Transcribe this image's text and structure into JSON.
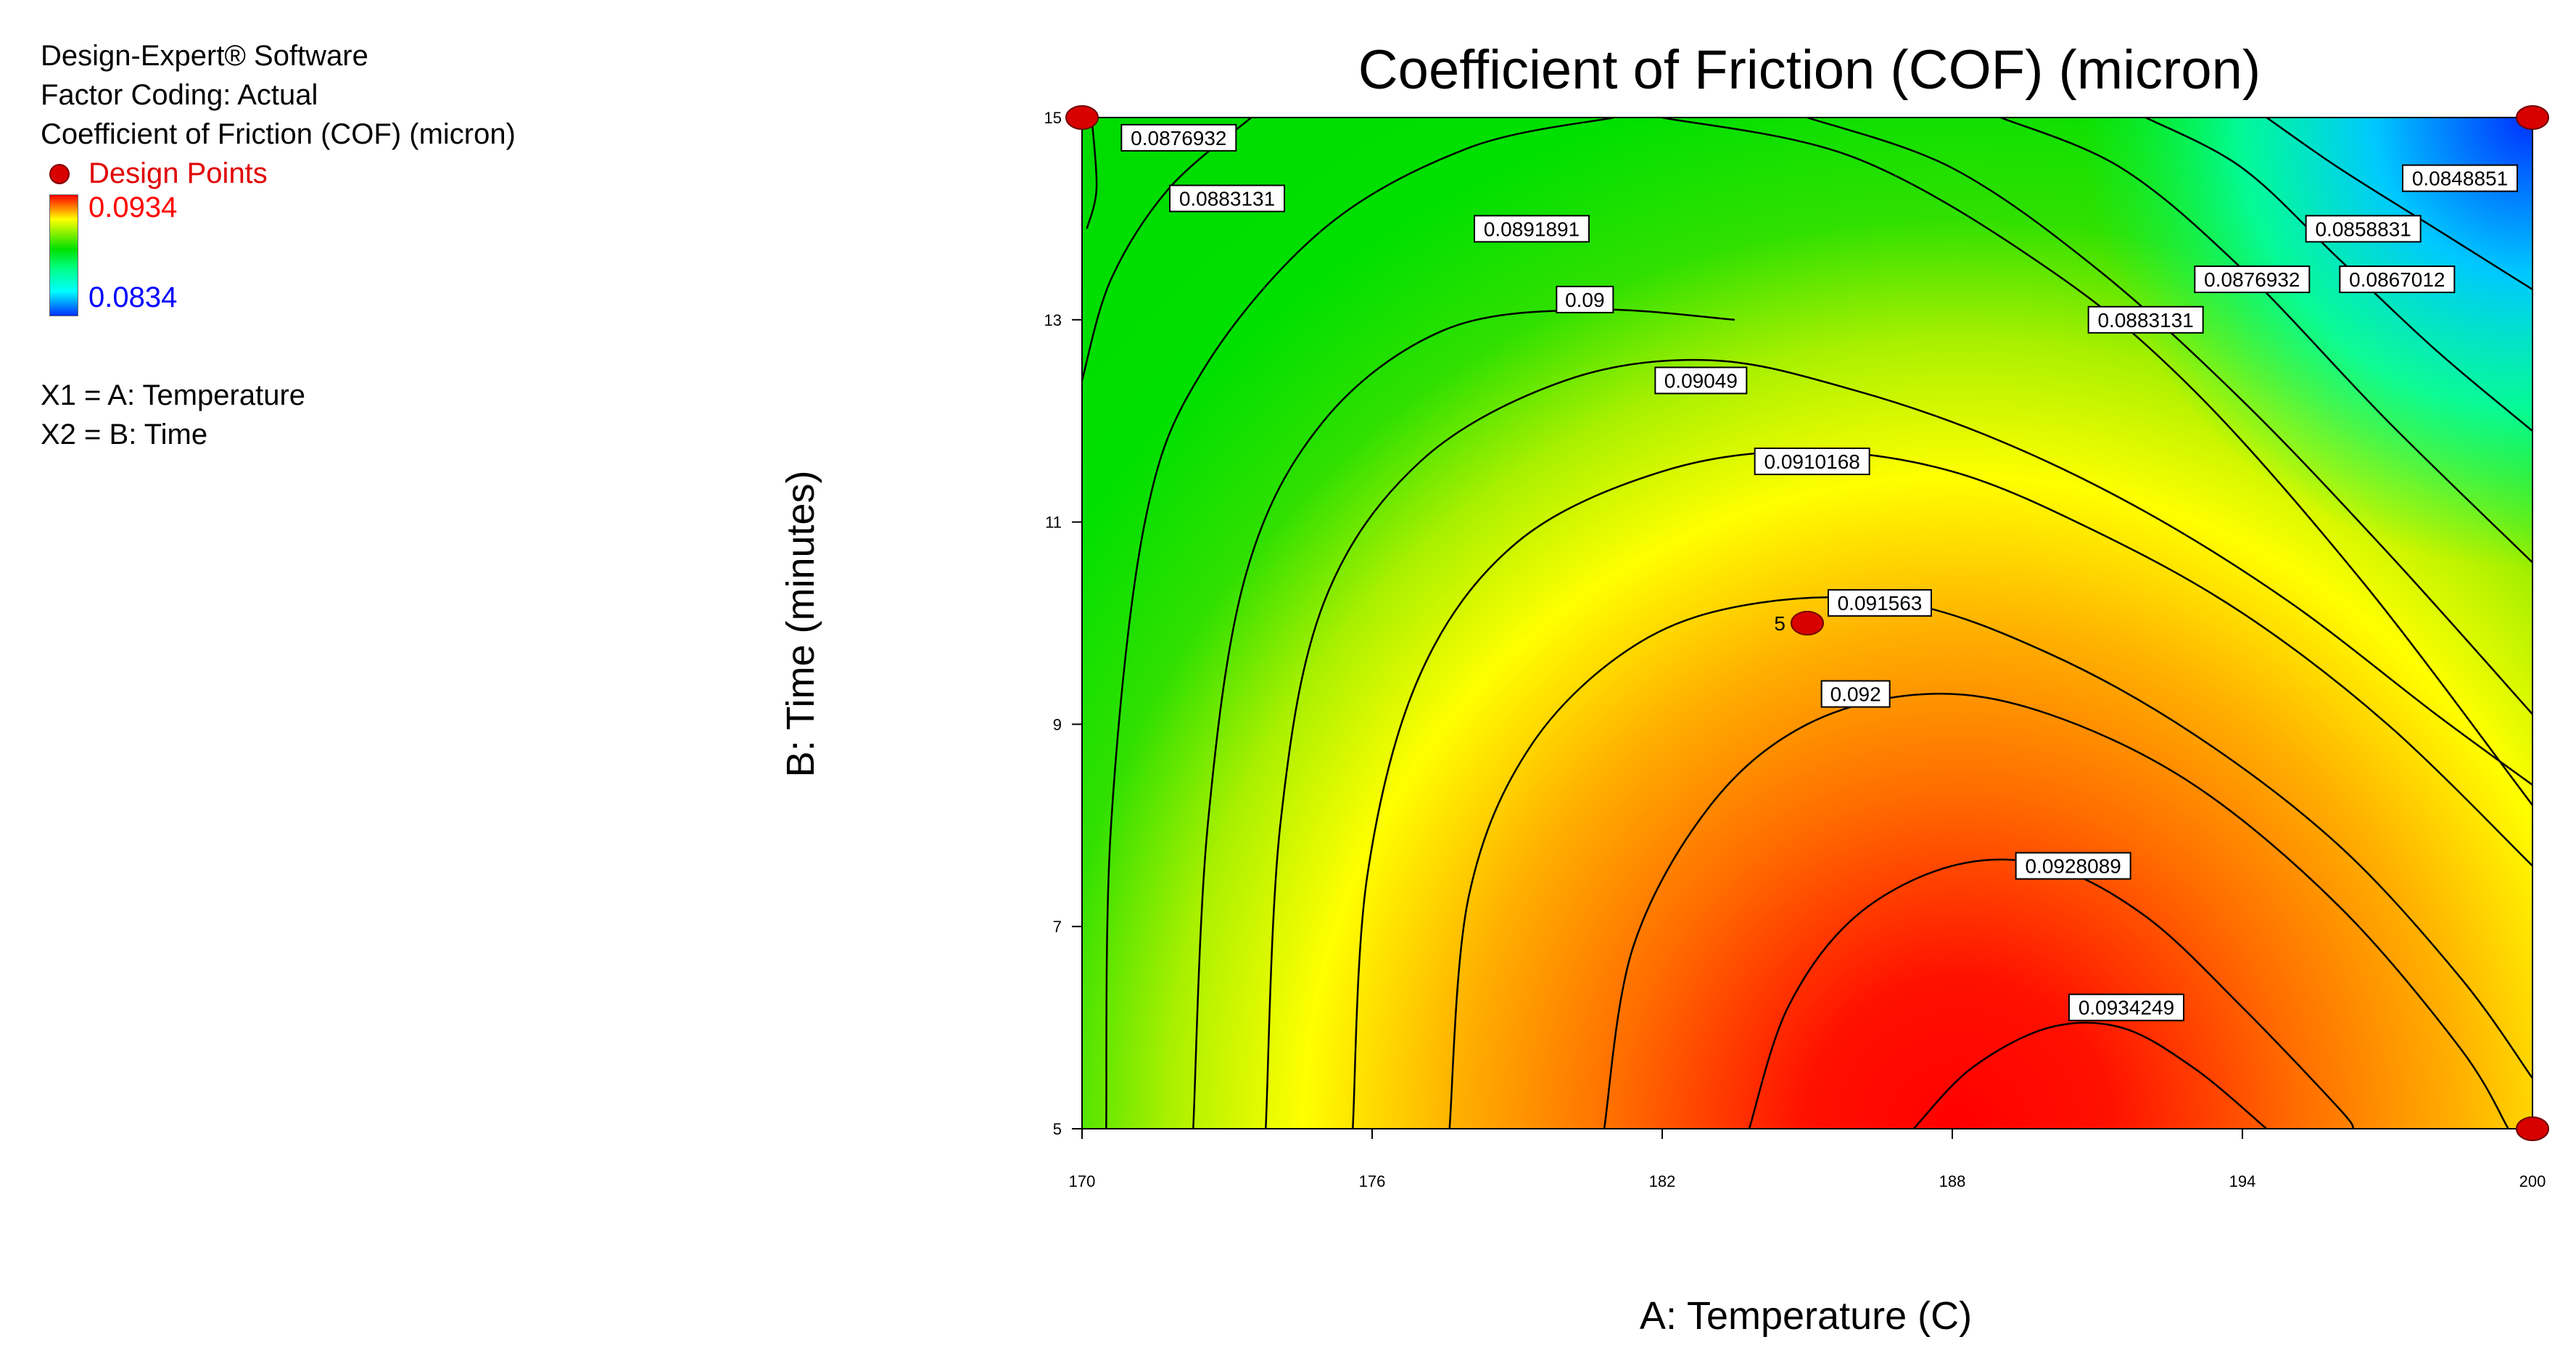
{
  "legend": {
    "line1": "Design-Expert® Software",
    "line2": "Factor Coding: Actual",
    "line3": "Coefficient of Friction (COF) (micron)",
    "design_points_label": "Design Points",
    "color_high": "0.0934",
    "color_low": "0.0834",
    "x1": "X1 = A: Temperature",
    "x2": "X2 = B: Time"
  },
  "chart_data": {
    "type": "heatmap",
    "subtype": "contour",
    "title": "Coefficient of Friction (COF) (micron)",
    "xlabel": "A: Temperature (C)",
    "ylabel": "B: Time (minutes)",
    "xlim": [
      170,
      200
    ],
    "ylim": [
      5,
      15
    ],
    "xticks": [
      "170",
      "176",
      "182",
      "188",
      "194",
      "200"
    ],
    "yticks": [
      "5",
      "7",
      "9",
      "11",
      "13",
      "15"
    ],
    "color_range": [
      0.0834,
      0.0934
    ],
    "colors": {
      "high": "#ff0000",
      "mid": "#ffff00",
      "low_mid": "#00e000",
      "low": "#0030ff",
      "point": "#d90000"
    },
    "contours": [
      {
        "label": "0.0848851",
        "lx": 198.5,
        "ly": 14.4,
        "points": [
          [
            194.5,
            15
          ],
          [
            196,
            14.5
          ],
          [
            198,
            13.9
          ],
          [
            200,
            13.3
          ]
        ]
      },
      {
        "label": "0.0858831",
        "lx": 196.5,
        "ly": 13.9,
        "points": [
          [
            192,
            15
          ],
          [
            194,
            14.5
          ],
          [
            196,
            13.6
          ],
          [
            198,
            12.7
          ],
          [
            200,
            11.9
          ]
        ]
      },
      {
        "label": "0.0867012",
        "lx": 197.2,
        "ly": 13.4,
        "points": [
          [
            189,
            15
          ],
          [
            191.5,
            14.5
          ],
          [
            194,
            13.5
          ],
          [
            197,
            12.0
          ],
          [
            200,
            10.6
          ]
        ]
      },
      {
        "label": "0.0876932",
        "lx": 194.2,
        "ly": 13.4,
        "points": [
          [
            185,
            15
          ],
          [
            188,
            14.5
          ],
          [
            191,
            13.5
          ],
          [
            194,
            12.2
          ],
          [
            197,
            10.7
          ],
          [
            200,
            9.1
          ]
        ]
      },
      {
        "label": "0.0883131",
        "lx": 192.0,
        "ly": 13.0,
        "points": [
          [
            182,
            15
          ],
          [
            186,
            14.6
          ],
          [
            190,
            13.5
          ],
          [
            193,
            12.3
          ],
          [
            196.5,
            10.4
          ],
          [
            200,
            8.2
          ]
        ]
      },
      {
        "label": "0.0876932",
        "lx": 172.0,
        "ly": 14.8,
        "points": [
          [
            170.2,
            15
          ],
          [
            170.3,
            14.3
          ],
          [
            170.1,
            13.9
          ]
        ]
      },
      {
        "label": "0.0883131",
        "lx": 173.0,
        "ly": 14.2,
        "points": [
          [
            170,
            12.4
          ],
          [
            170.6,
            13.4
          ],
          [
            171.8,
            14.3
          ],
          [
            173.5,
            15
          ]
        ]
      },
      {
        "label": "0.0891891",
        "lx": 179.3,
        "ly": 13.9,
        "points": [
          [
            170.5,
            5
          ],
          [
            170.6,
            8
          ],
          [
            171.3,
            11
          ],
          [
            172.5,
            12.5
          ],
          [
            175,
            13.9
          ],
          [
            178,
            14.7
          ],
          [
            181,
            15
          ]
        ]
      },
      {
        "label": "0.09",
        "lx": 180.4,
        "ly": 13.2,
        "points": [
          [
            172.3,
            5
          ],
          [
            172.6,
            8
          ],
          [
            173.4,
            10.5
          ],
          [
            175,
            12
          ],
          [
            177.5,
            12.9
          ],
          [
            180.5,
            13.1
          ],
          [
            183.5,
            13.0
          ]
        ]
      },
      {
        "label": "0.09049",
        "lx": 182.8,
        "ly": 12.4,
        "points": [
          [
            173.8,
            5
          ],
          [
            174.1,
            8
          ],
          [
            175,
            10.2
          ],
          [
            177,
            11.6
          ],
          [
            180,
            12.4
          ],
          [
            183,
            12.6
          ],
          [
            186,
            12.3
          ],
          [
            189,
            11.8
          ],
          [
            192,
            11.1
          ],
          [
            195,
            10.2
          ],
          [
            198,
            9.1
          ],
          [
            200,
            8.4
          ]
        ]
      },
      {
        "label": "0.0910168",
        "lx": 185.1,
        "ly": 11.6,
        "points": [
          [
            175.6,
            5
          ],
          [
            175.9,
            7.5
          ],
          [
            177,
            9.5
          ],
          [
            179,
            10.8
          ],
          [
            182,
            11.5
          ],
          [
            185,
            11.7
          ],
          [
            188,
            11.5
          ],
          [
            191,
            10.9
          ],
          [
            194,
            10.1
          ],
          [
            197,
            9.0
          ],
          [
            200,
            7.6
          ]
        ]
      },
      {
        "label": "0.091563",
        "lx": 186.5,
        "ly": 10.2,
        "points": [
          [
            177.6,
            5
          ],
          [
            178,
            7.3
          ],
          [
            179.3,
            8.8
          ],
          [
            181.5,
            9.8
          ],
          [
            184,
            10.2
          ],
          [
            187,
            10.2
          ],
          [
            190,
            9.7
          ],
          [
            193,
            8.9
          ],
          [
            196,
            7.8
          ],
          [
            198.5,
            6.5
          ],
          [
            200,
            5.5
          ]
        ]
      },
      {
        "label": "0.092",
        "lx": 186.0,
        "ly": 9.3,
        "points": [
          [
            180.8,
            5
          ],
          [
            181.4,
            6.8
          ],
          [
            183,
            8.2
          ],
          [
            185,
            9.0
          ],
          [
            187.5,
            9.3
          ],
          [
            190,
            9.1
          ],
          [
            193,
            8.4
          ],
          [
            196,
            7.2
          ],
          [
            198.5,
            5.8
          ],
          [
            199.5,
            5
          ]
        ]
      },
      {
        "label": "0.0928089",
        "lx": 190.5,
        "ly": 7.6,
        "points": [
          [
            183.8,
            5
          ],
          [
            184.6,
            6.2
          ],
          [
            186,
            7.1
          ],
          [
            188,
            7.6
          ],
          [
            190,
            7.6
          ],
          [
            192,
            7.1
          ],
          [
            194,
            6.2
          ],
          [
            196,
            5.2
          ],
          [
            196.3,
            5
          ]
        ]
      },
      {
        "label": "0.0934249",
        "lx": 191.6,
        "ly": 6.2,
        "points": [
          [
            187.2,
            5
          ],
          [
            188.4,
            5.6
          ],
          [
            190,
            6.0
          ],
          [
            191.5,
            6.0
          ],
          [
            193,
            5.6
          ],
          [
            194.5,
            5
          ]
        ]
      }
    ],
    "design_points": [
      {
        "x": 170,
        "y": 15
      },
      {
        "x": 200,
        "y": 15
      },
      {
        "x": 200,
        "y": 5
      },
      {
        "x": 185,
        "y": 10,
        "label": "5"
      }
    ]
  }
}
